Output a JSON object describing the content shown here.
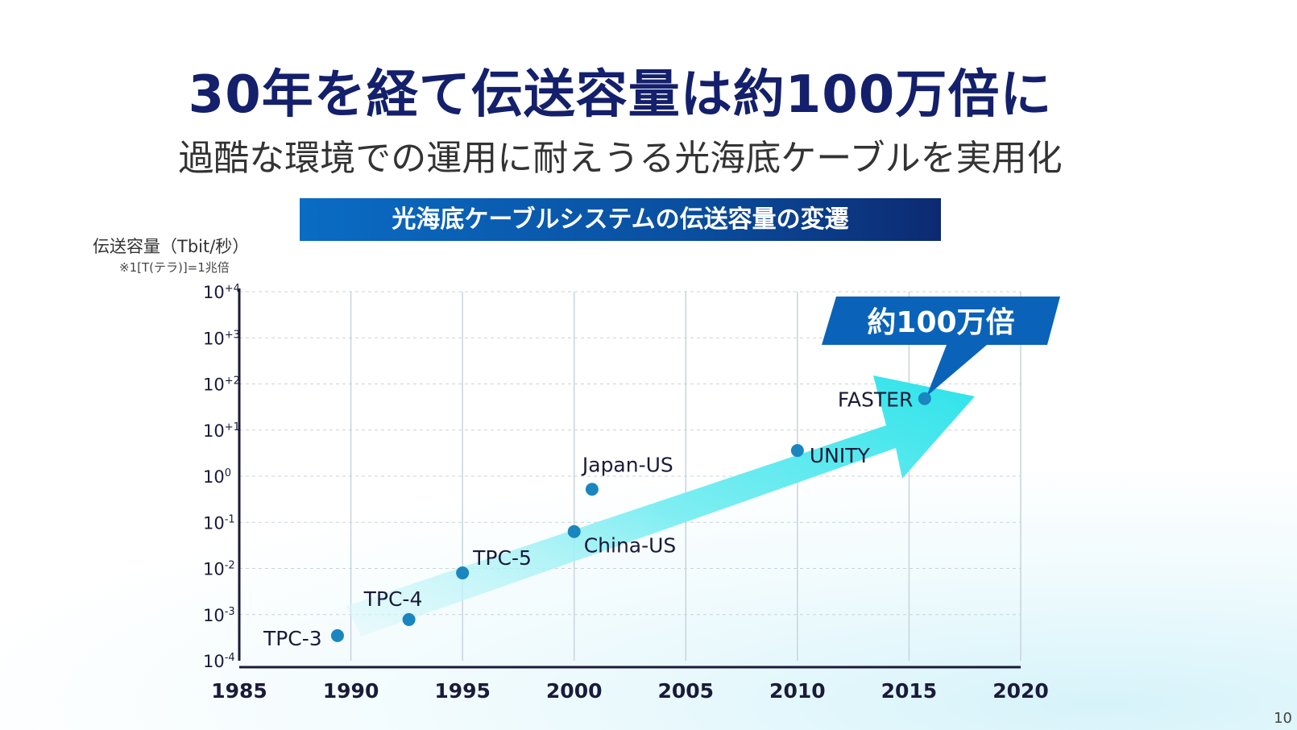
{
  "slide": {
    "title": "30年を経て伝送容量は約100万倍に",
    "subtitle": "過酷な環境での運用に耐えうる光海底ケーブルを実用化",
    "page_number": "10"
  },
  "chart_data": {
    "type": "scatter",
    "title": "光海底ケーブルシステムの伝送容量の変遷",
    "ylabel": "伝送容量（Tbit/秒）",
    "ylabel_note": "※1[T(テラ)]=1兆倍",
    "xlabel": "",
    "y_scale": "log",
    "xlim": [
      1985,
      2020
    ],
    "ylim": [
      0.0001,
      10000
    ],
    "x_ticks": [
      "1985",
      "1990",
      "1995",
      "2000",
      "2005",
      "2010",
      "2015",
      "2020"
    ],
    "y_ticks": [
      {
        "base": "10",
        "exp": "-4"
      },
      {
        "base": "10",
        "exp": "-3"
      },
      {
        "base": "10",
        "exp": "-2"
      },
      {
        "base": "10",
        "exp": "-1"
      },
      {
        "base": "10",
        "exp": "0"
      },
      {
        "base": "10",
        "exp": "+1"
      },
      {
        "base": "10",
        "exp": "+2"
      },
      {
        "base": "10",
        "exp": "+3"
      },
      {
        "base": "10",
        "exp": "+4"
      }
    ],
    "grid": true,
    "points": [
      {
        "label": "TPC-3",
        "x": 1989.4,
        "y": 0.00035
      },
      {
        "label": "TPC-4",
        "x": 1992.6,
        "y": 0.00078
      },
      {
        "label": "TPC-5",
        "x": 1995.0,
        "y": 0.008
      },
      {
        "label": "China-US",
        "x": 2000.0,
        "y": 0.063
      },
      {
        "label": "Japan-US",
        "x": 2000.8,
        "y": 0.52
      },
      {
        "label": "UNITY",
        "x": 2010.0,
        "y": 3.6
      },
      {
        "label": "FASTER",
        "x": 2015.7,
        "y": 48
      }
    ],
    "annotation": "約100万倍",
    "colors": {
      "point": "#1a86c0",
      "arrow": "#3ee6ec",
      "callout": "#0a63b8",
      "axis": "#1a1a3a",
      "grid": "#c9d3dc"
    }
  }
}
